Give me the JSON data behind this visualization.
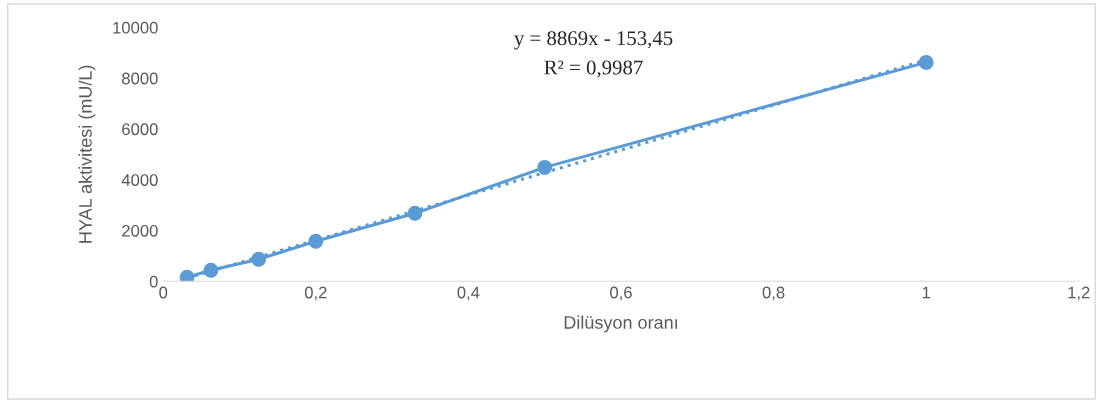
{
  "chart_data": {
    "type": "line",
    "xlabel": "Dilüsyon oranı",
    "ylabel": "HYAL aktivitesi (mU/L)",
    "x": [
      0.03125,
      0.0625,
      0.125,
      0.2,
      0.33,
      0.5,
      1
    ],
    "series": [
      {
        "color": "#5b9bd5",
        "values": [
          157,
          433,
          866,
          1575,
          2677,
          4488,
          8622
        ],
        "marker": "circle",
        "line_style": "solid"
      },
      {
        "type": "line",
        "color": "#5b9bd5",
        "x": [
          0.03125,
          1
        ],
        "values": [
          124,
          8716
        ],
        "marker": "none",
        "line_style": "dotted"
      }
    ],
    "xlim": [
      0,
      1.2
    ],
    "xticks": [
      {
        "value": 0,
        "label": "0"
      },
      {
        "value": 0.2,
        "label": "0,2"
      },
      {
        "value": 0.4,
        "label": "0,4"
      },
      {
        "value": 0.6,
        "label": "0,6"
      },
      {
        "value": 0.8,
        "label": "0,8"
      },
      {
        "value": 1,
        "label": "1"
      },
      {
        "value": 1.2,
        "label": "1,2"
      }
    ],
    "ylim": [
      0,
      10000
    ],
    "yticks": [
      0,
      2000,
      4000,
      6000,
      8000,
      10000
    ],
    "annotations": [
      "y = 8869x - 153,45",
      "R² = 0,9987"
    ],
    "grid": false,
    "legend": false
  }
}
